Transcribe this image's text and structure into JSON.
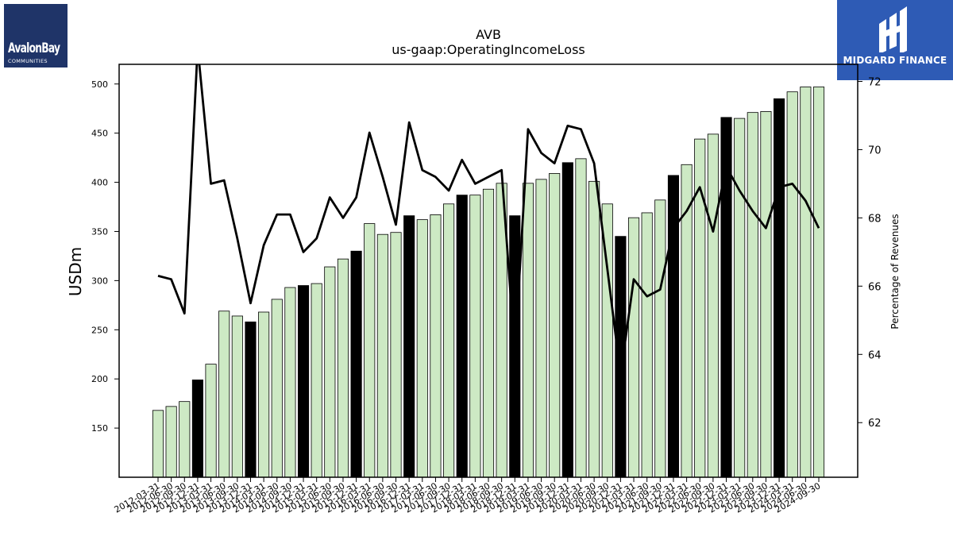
{
  "brand_left": {
    "name": "AvalonBay",
    "subtitle": "COMMUNITIES"
  },
  "brand_right": {
    "name": "MIDGARD FINANCE"
  },
  "chart_data": {
    "type": "bar",
    "title": "AVB",
    "subtitle": "us-gaap:OperatingIncomeLoss",
    "ylabel": "USDm",
    "y2label": "Percentage of Revenues",
    "ylim": [
      100,
      520
    ],
    "y2lim": [
      60.4,
      72.5
    ],
    "yticks": [
      150,
      200,
      250,
      300,
      350,
      400,
      450,
      500
    ],
    "y2ticks": [
      62,
      64,
      66,
      68,
      70,
      72
    ],
    "bar_colors": {
      "quarter": "#cde9c4",
      "annual": "#000000"
    },
    "line_color": "#000000",
    "categories": [
      "2012-03-31",
      "2012-06-30",
      "2012-09-30",
      "2012-12-31",
      "2013-03-31",
      "2013-06-30",
      "2013-09-30",
      "2013-12-31",
      "2014-03-31",
      "2014-06-30",
      "2014-09-30",
      "2014-12-31",
      "2015-03-31",
      "2015-06-30",
      "2015-09-30",
      "2015-12-31",
      "2016-03-31",
      "2016-06-30",
      "2016-09-30",
      "2016-12-31",
      "2017-03-31",
      "2017-06-30",
      "2017-09-30",
      "2017-12-31",
      "2018-03-31",
      "2018-06-30",
      "2018-09-30",
      "2018-12-31",
      "2019-03-31",
      "2019-06-30",
      "2019-09-30",
      "2019-12-31",
      "2020-03-31",
      "2020-06-30",
      "2020-09-30",
      "2020-12-31",
      "2021-03-31",
      "2021-06-30",
      "2021-09-30",
      "2021-12-31",
      "2022-03-31",
      "2022-06-30",
      "2022-09-30",
      "2022-12-31",
      "2023-03-31",
      "2023-06-30",
      "2023-09-30",
      "2023-12-31",
      "2024-03-31",
      "2024-06-30",
      "2024-09-30"
    ],
    "tick_labels": [
      "2012-03-31",
      "2012-06-30",
      "2012-09-30",
      "2012-12-31",
      "2013-03-31",
      "2013-06-30",
      "2013-09-30",
      "2013-12-31",
      "2014-03-31",
      "2014-06-30",
      "2014-09-30",
      "2014-12-31",
      "2015-03-31",
      "2015-06-30",
      "2015-09-30",
      "2015-12-31",
      "2016-03-31",
      "2016-06-30",
      "2016-09-30",
      "2016-12-31",
      "2017-03-31",
      "2017-06-30",
      "2017-09-30",
      "2017-12-31",
      "2018-03-31",
      "2018-06-30",
      "2018-09-30",
      "2018-12-31",
      "2019-03-31",
      "2019-06-30",
      "2019-09-30",
      "2019-12-31",
      "2020-03-31",
      "2020-06-30",
      "2020-09-30",
      "2020-12-31",
      "2021-03-31",
      "2021-06-30",
      "2021-09-30",
      "2021-12-31",
      "2022-03-31",
      "2022-06-30",
      "2022-09-30",
      "2022-12-31",
      "2023-03-31",
      "2023-06-30",
      "2023-09-30",
      "2023-12-31",
      "2024-03-31",
      "2024-06-30",
      "2024-09-30"
    ],
    "annual": [
      false,
      false,
      false,
      true,
      false,
      false,
      false,
      true,
      false,
      false,
      false,
      true,
      false,
      false,
      false,
      true,
      false,
      false,
      false,
      true,
      false,
      false,
      false,
      true,
      false,
      false,
      false,
      true,
      false,
      false,
      false,
      true,
      false,
      false,
      false,
      true,
      false,
      false,
      false,
      true,
      false,
      false,
      false,
      true,
      false,
      false,
      false,
      true,
      false,
      false,
      false
    ],
    "series": [
      {
        "values": [
          168,
          172,
          177,
          199,
          215,
          269,
          264,
          258,
          268,
          281,
          293,
          295,
          297,
          314,
          322,
          330,
          358,
          347,
          349,
          366,
          362,
          367,
          378,
          387,
          387,
          393,
          399,
          366,
          399,
          403,
          409,
          420,
          424,
          401,
          378,
          345,
          364,
          369,
          382,
          407,
          418,
          444,
          449,
          466,
          465,
          471,
          472,
          485,
          492,
          497,
          497
        ]
      },
      {
        "values": [
          66.3,
          66.2,
          65.2,
          73.0,
          69.0,
          69.1,
          67.4,
          65.5,
          67.2,
          68.1,
          68.1,
          67.0,
          67.4,
          68.6,
          68.0,
          68.6,
          70.5,
          69.2,
          67.8,
          70.8,
          69.4,
          69.2,
          68.8,
          69.7,
          69.0,
          69.2,
          69.4,
          64.0,
          70.6,
          69.9,
          69.6,
          70.7,
          70.6,
          69.6,
          66.5,
          63.4,
          66.2,
          65.7,
          65.9,
          67.7,
          68.2,
          68.9,
          67.6,
          69.5,
          68.8,
          68.2,
          67.7,
          68.9,
          69.0,
          68.5,
          67.7
        ]
      }
    ]
  }
}
